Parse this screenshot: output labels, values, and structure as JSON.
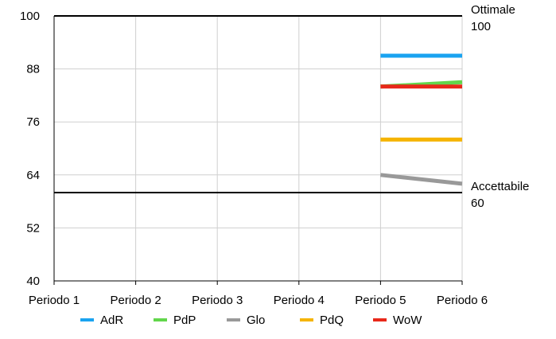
{
  "chart_data": {
    "type": "line",
    "categories": [
      "Periodo 1",
      "Periodo 2",
      "Periodo 3",
      "Periodo 4",
      "Periodo 5",
      "Periodo 6"
    ],
    "ylim": [
      40,
      100
    ],
    "yticks": [
      40,
      52,
      64,
      76,
      88,
      100
    ],
    "grid": true,
    "legend_position": "bottom",
    "series": [
      {
        "name": "AdR",
        "color": "#1aa3f0",
        "values": [
          null,
          null,
          null,
          null,
          91,
          91
        ]
      },
      {
        "name": "PdP",
        "color": "#62d64b",
        "values": [
          null,
          null,
          null,
          null,
          84,
          85
        ]
      },
      {
        "name": "Glo",
        "color": "#999999",
        "values": [
          null,
          null,
          null,
          null,
          64,
          62
        ]
      },
      {
        "name": "PdQ",
        "color": "#f5b400",
        "values": [
          null,
          null,
          null,
          null,
          72,
          72
        ]
      },
      {
        "name": "WoW",
        "color": "#e8281a",
        "values": [
          null,
          null,
          null,
          null,
          84,
          84
        ]
      }
    ],
    "reference_lines": [
      {
        "label_top": "Ottimale",
        "label_bottom": "100",
        "value": 100
      },
      {
        "label_top": "Accettabile",
        "label_bottom": "60",
        "value": 60
      }
    ]
  }
}
